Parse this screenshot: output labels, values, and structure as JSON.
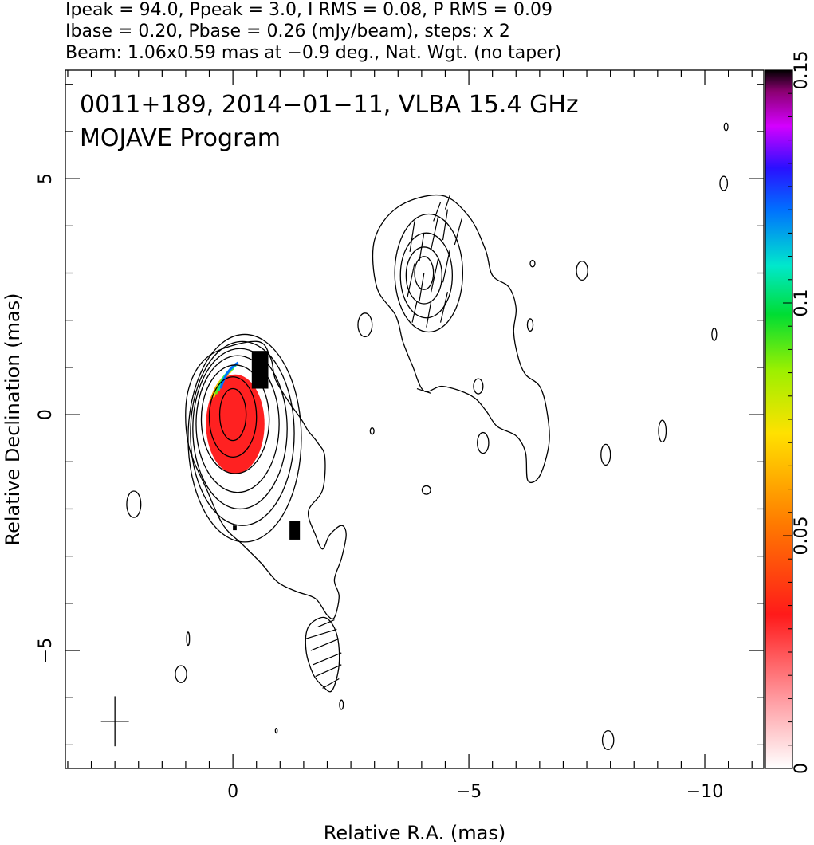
{
  "header": {
    "line1": "Ipeak = 94.0, Ppeak = 3.0, I RMS = 0.08, P RMS = 0.09",
    "line2": "Ibase = 0.20, Pbase = 0.26 (mJy/beam), steps: x 2",
    "line3": "Beam: 1.06x0.59 mas at −0.9 deg., Nat. Wgt. (no taper)"
  },
  "chart_data": {
    "type": "contour",
    "title_line1": "0011+189, 2014−01−11, VLBA 15.4 GHz",
    "title_line2": "MOJAVE Program",
    "xlabel": "Relative R.A. (mas)",
    "ylabel": "Relative Declination (mas)",
    "xlim": [
      3.55,
      -11.25
    ],
    "ylim": [
      -7.5,
      7.3
    ],
    "x_ticks": [
      {
        "v": 0,
        "label": "0"
      },
      {
        "v": -5,
        "label": "−5"
      },
      {
        "v": -10,
        "label": "−10"
      }
    ],
    "y_ticks": [
      {
        "v": 5,
        "label": "5"
      },
      {
        "v": 0,
        "label": "0"
      },
      {
        "v": -5,
        "label": "−5"
      }
    ],
    "x_minor_step": 0.5,
    "y_minor_step": 1,
    "colorbar": {
      "min": 0,
      "max": 0.15,
      "ticks": [
        {
          "v": 0,
          "label": "0"
        },
        {
          "v": 0.05,
          "label": "0.05"
        },
        {
          "v": 0.1,
          "label": "0.1"
        },
        {
          "v": 0.15,
          "label": "0.15"
        }
      ]
    },
    "peak_intensity_mJy_per_beam": 94.0,
    "peak_polarized_mJy_per_beam": 3.0,
    "i_rms": 0.08,
    "p_rms": 0.09,
    "i_base": 0.2,
    "p_base": 0.26,
    "contour_step_factor": 2,
    "beam": {
      "major_mas": 1.06,
      "minor_mas": 0.59,
      "pa_deg": -0.9,
      "center": [
        2.5,
        -6.5
      ]
    },
    "core_contours": [
      {
        "cx": 0.0,
        "cy": 0.0,
        "rx": 0.28,
        "ry": 0.55
      },
      {
        "cx": 0.0,
        "cy": -0.05,
        "rx": 0.5,
        "ry": 0.85
      },
      {
        "cx": -0.05,
        "cy": -0.1,
        "rx": 0.72,
        "ry": 1.15
      },
      {
        "cx": -0.1,
        "cy": -0.2,
        "rx": 0.88,
        "ry": 1.45
      },
      {
        "cx": -0.15,
        "cy": -0.3,
        "rx": 1.0,
        "ry": 1.7
      },
      {
        "cx": -0.2,
        "cy": -0.4,
        "rx": 1.1,
        "ry": 1.95
      },
      {
        "cx": -0.25,
        "cy": -0.5,
        "rx": 1.2,
        "ry": 2.2
      }
    ],
    "outer_contour": [
      [
        -0.5,
        1.55
      ],
      [
        0.5,
        1.25
      ],
      [
        0.95,
        0.5
      ],
      [
        0.95,
        -0.6
      ],
      [
        0.55,
        -1.6
      ],
      [
        0.2,
        -2.35
      ],
      [
        -0.2,
        -2.75
      ],
      [
        -0.6,
        -3.15
      ],
      [
        -0.95,
        -3.55
      ],
      [
        -1.35,
        -3.75
      ],
      [
        -1.75,
        -3.9
      ],
      [
        -2.0,
        -4.25
      ],
      [
        -2.15,
        -4.3
      ],
      [
        -2.25,
        -3.85
      ],
      [
        -2.15,
        -3.5
      ],
      [
        -2.3,
        -3.05
      ],
      [
        -2.4,
        -2.55
      ],
      [
        -2.3,
        -2.35
      ],
      [
        -2.05,
        -2.55
      ],
      [
        -1.9,
        -2.85
      ],
      [
        -1.75,
        -2.55
      ],
      [
        -1.6,
        -2.05
      ],
      [
        -1.9,
        -1.6
      ],
      [
        -1.95,
        -0.9
      ],
      [
        -1.8,
        -0.6
      ],
      [
        -1.6,
        -0.35
      ],
      [
        -1.45,
        -0.1
      ],
      [
        -1.2,
        0.25
      ],
      [
        -0.9,
        0.75
      ],
      [
        -0.8,
        1.2
      ],
      [
        -0.5,
        1.55
      ]
    ],
    "north_outer_contour": [
      [
        -3.45,
        2.1
      ],
      [
        -3.05,
        2.7
      ],
      [
        -3.0,
        3.7
      ],
      [
        -3.5,
        4.4
      ],
      [
        -4.4,
        4.65
      ],
      [
        -5.0,
        4.2
      ],
      [
        -5.35,
        3.5
      ],
      [
        -5.5,
        2.95
      ],
      [
        -5.85,
        2.7
      ],
      [
        -6.0,
        2.25
      ],
      [
        -5.95,
        1.75
      ],
      [
        -6.05,
        1.2
      ],
      [
        -6.2,
        0.85
      ],
      [
        -6.5,
        0.6
      ],
      [
        -6.65,
        0.1
      ],
      [
        -6.7,
        -0.6
      ],
      [
        -6.5,
        -1.3
      ],
      [
        -6.25,
        -1.4
      ],
      [
        -6.2,
        -0.8
      ],
      [
        -6.0,
        -0.45
      ],
      [
        -5.6,
        -0.25
      ],
      [
        -5.35,
        0.1
      ],
      [
        -5.05,
        0.4
      ],
      [
        -4.45,
        0.6
      ],
      [
        -4.05,
        0.5
      ],
      [
        -3.8,
        1.05
      ],
      [
        -3.6,
        1.55
      ],
      [
        -3.45,
        2.1
      ]
    ],
    "north_contours": [
      {
        "cx": -4.05,
        "cy": 3.0,
        "rx": 0.2,
        "ry": 0.35
      },
      {
        "cx": -4.05,
        "cy": 2.95,
        "rx": 0.38,
        "ry": 0.6
      },
      {
        "cx": -4.1,
        "cy": 2.95,
        "rx": 0.55,
        "ry": 0.9
      },
      {
        "cx": -4.15,
        "cy": 3.0,
        "rx": 0.72,
        "ry": 1.25
      }
    ],
    "south_contour": [
      [
        -1.6,
        -4.5
      ],
      [
        -1.95,
        -4.3
      ],
      [
        -2.2,
        -4.65
      ],
      [
        -2.25,
        -5.3
      ],
      [
        -2.1,
        -5.85
      ],
      [
        -1.9,
        -5.75
      ],
      [
        -1.7,
        -5.5
      ],
      [
        -1.55,
        -5.0
      ],
      [
        -1.6,
        -4.5
      ]
    ],
    "noise_islands": [
      {
        "cx": 2.1,
        "cy": -1.9,
        "rx": 0.15,
        "ry": 0.28
      },
      {
        "cx": 1.1,
        "cy": -5.5,
        "rx": 0.12,
        "ry": 0.18
      },
      {
        "cx": 0.95,
        "cy": -4.75,
        "rx": 0.03,
        "ry": 0.14
      },
      {
        "cx": -2.3,
        "cy": -6.15,
        "rx": 0.04,
        "ry": 0.1
      },
      {
        "cx": -0.92,
        "cy": -6.7,
        "rx": 0.02,
        "ry": 0.05
      },
      {
        "cx": -4.1,
        "cy": -1.6,
        "rx": 0.09,
        "ry": 0.09
      },
      {
        "cx": -2.95,
        "cy": -0.35,
        "rx": 0.04,
        "ry": 0.07
      },
      {
        "cx": -5.3,
        "cy": -0.6,
        "rx": 0.12,
        "ry": 0.22
      },
      {
        "cx": -5.2,
        "cy": 0.6,
        "rx": 0.1,
        "ry": 0.16
      },
      {
        "cx": -6.3,
        "cy": 1.9,
        "rx": 0.06,
        "ry": 0.13
      },
      {
        "cx": -6.35,
        "cy": 3.2,
        "rx": 0.05,
        "ry": 0.07
      },
      {
        "cx": -7.4,
        "cy": 3.05,
        "rx": 0.12,
        "ry": 0.2
      },
      {
        "cx": -7.9,
        "cy": -0.85,
        "rx": 0.1,
        "ry": 0.22
      },
      {
        "cx": -9.1,
        "cy": -0.35,
        "rx": 0.08,
        "ry": 0.23
      },
      {
        "cx": -7.95,
        "cy": -6.9,
        "rx": 0.12,
        "ry": 0.2
      },
      {
        "cx": -10.2,
        "cy": 1.7,
        "rx": 0.05,
        "ry": 0.13
      },
      {
        "cx": -10.4,
        "cy": 4.9,
        "rx": 0.08,
        "ry": 0.15
      },
      {
        "cx": -10.45,
        "cy": 6.1,
        "rx": 0.04,
        "ry": 0.08
      },
      {
        "cx": -2.8,
        "cy": 1.9,
        "rx": 0.15,
        "ry": 0.25
      }
    ],
    "fractional_pol_core": {
      "cx": -0.05,
      "cy": -0.2,
      "rx": 0.62,
      "ry": 1.05,
      "value": 0.032,
      "black_pixels": [
        {
          "x1": -0.4,
          "y1": 1.35,
          "x2": -0.75,
          "y2": 0.55
        },
        {
          "x1": -1.2,
          "y1": -2.25,
          "x2": -1.42,
          "y2": -2.65
        },
        {
          "x1": 0.0,
          "y1": -2.35,
          "x2": -0.08,
          "y2": -2.45
        }
      ]
    },
    "evpa_ticks": [
      [
        -3.75,
        3.45,
        -3.85,
        4.1
      ],
      [
        -3.95,
        3.25,
        -4.05,
        3.85
      ],
      [
        -4.2,
        3.5,
        -4.35,
        4.2
      ],
      [
        -4.45,
        3.7,
        -4.55,
        4.35
      ],
      [
        -3.7,
        2.5,
        -3.85,
        3.2
      ],
      [
        -3.95,
        2.4,
        -4.05,
        3.0
      ],
      [
        -4.2,
        2.6,
        -4.35,
        3.3
      ],
      [
        -4.45,
        2.8,
        -4.6,
        3.5
      ],
      [
        -3.8,
        1.95,
        -3.9,
        2.4
      ],
      [
        -4.1,
        1.85,
        -4.2,
        2.4
      ],
      [
        -4.4,
        1.95,
        -4.55,
        2.6
      ],
      [
        -4.25,
        4.1,
        -4.4,
        4.5
      ],
      [
        -4.5,
        4.35,
        -4.6,
        4.65
      ],
      [
        -4.7,
        3.6,
        -4.85,
        4.15
      ],
      [
        -1.55,
        -4.75,
        -2.2,
        -4.55
      ],
      [
        -1.65,
        -5.0,
        -2.25,
        -4.75
      ],
      [
        -1.7,
        -5.3,
        -2.3,
        -5.05
      ],
      [
        -1.75,
        -5.55,
        -2.3,
        -5.3
      ],
      [
        -1.8,
        -4.5,
        -2.15,
        -4.35
      ],
      [
        -1.9,
        -5.8,
        -2.25,
        -5.6
      ],
      [
        -3.9,
        0.55,
        -4.2,
        0.45
      ]
    ]
  }
}
